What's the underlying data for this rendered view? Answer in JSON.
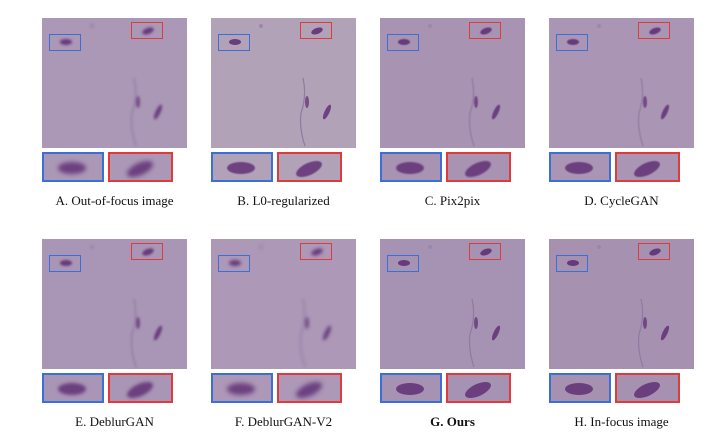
{
  "panels": [
    {
      "caption": "A. Out-of-focus image",
      "bold": false,
      "blur": 1.4,
      "tint": "#ab97b6"
    },
    {
      "caption": "B. L0-regularized",
      "bold": false,
      "blur": 0.3,
      "tint": "#b2a2b8"
    },
    {
      "caption": "C. Pix2pix",
      "bold": false,
      "blur": 0.5,
      "tint": "#a893b3"
    },
    {
      "caption": "D. CycleGAN",
      "bold": false,
      "blur": 0.4,
      "tint": "#aa96b4"
    },
    {
      "caption": "E. DeblurGAN",
      "bold": false,
      "blur": 1.0,
      "tint": "#a995b5"
    },
    {
      "caption": "F. DeblurGAN-V2",
      "bold": false,
      "blur": 1.6,
      "tint": "#ad98b8"
    },
    {
      "caption": "G. Ours",
      "bold": true,
      "blur": 0.2,
      "tint": "#a692b2"
    },
    {
      "caption": "H. In-focus image",
      "bold": false,
      "blur": 0.1,
      "tint": "#a691b1"
    }
  ],
  "colors": {
    "blue_box": "#3a6fd8",
    "red_box": "#e03a3a",
    "cell": "#5c2a72"
  }
}
